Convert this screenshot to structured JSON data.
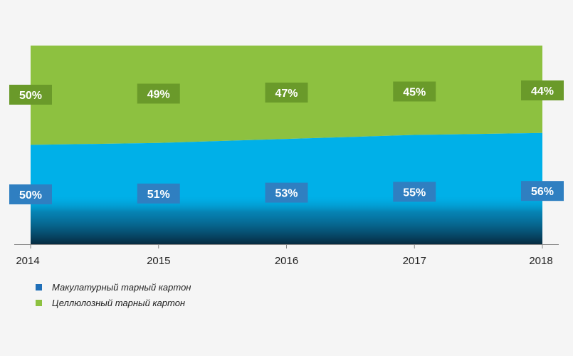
{
  "chart_data": {
    "type": "area",
    "stacked": true,
    "percent": true,
    "x": [
      "2014",
      "2015",
      "2016",
      "2017",
      "2018"
    ],
    "ylim": [
      0,
      100
    ],
    "grid": false,
    "legend_position": "bottom-left",
    "series": [
      {
        "name": "Макулатурный тарный картон",
        "values": [
          50,
          51,
          53,
          55,
          56
        ],
        "labels": [
          "50%",
          "51%",
          "53%",
          "55%",
          "56%"
        ],
        "color": "#00b0e8",
        "label_color": "#2f7fc1",
        "legend_color": "#1f6fb8"
      },
      {
        "name": "Целлюлозный тарный картон",
        "values": [
          50,
          49,
          47,
          45,
          44
        ],
        "labels": [
          "50%",
          "49%",
          "47%",
          "45%",
          "44%"
        ],
        "color": "#8dc140",
        "label_color": "#6a9a2a",
        "legend_color": "#8dc140"
      }
    ]
  }
}
